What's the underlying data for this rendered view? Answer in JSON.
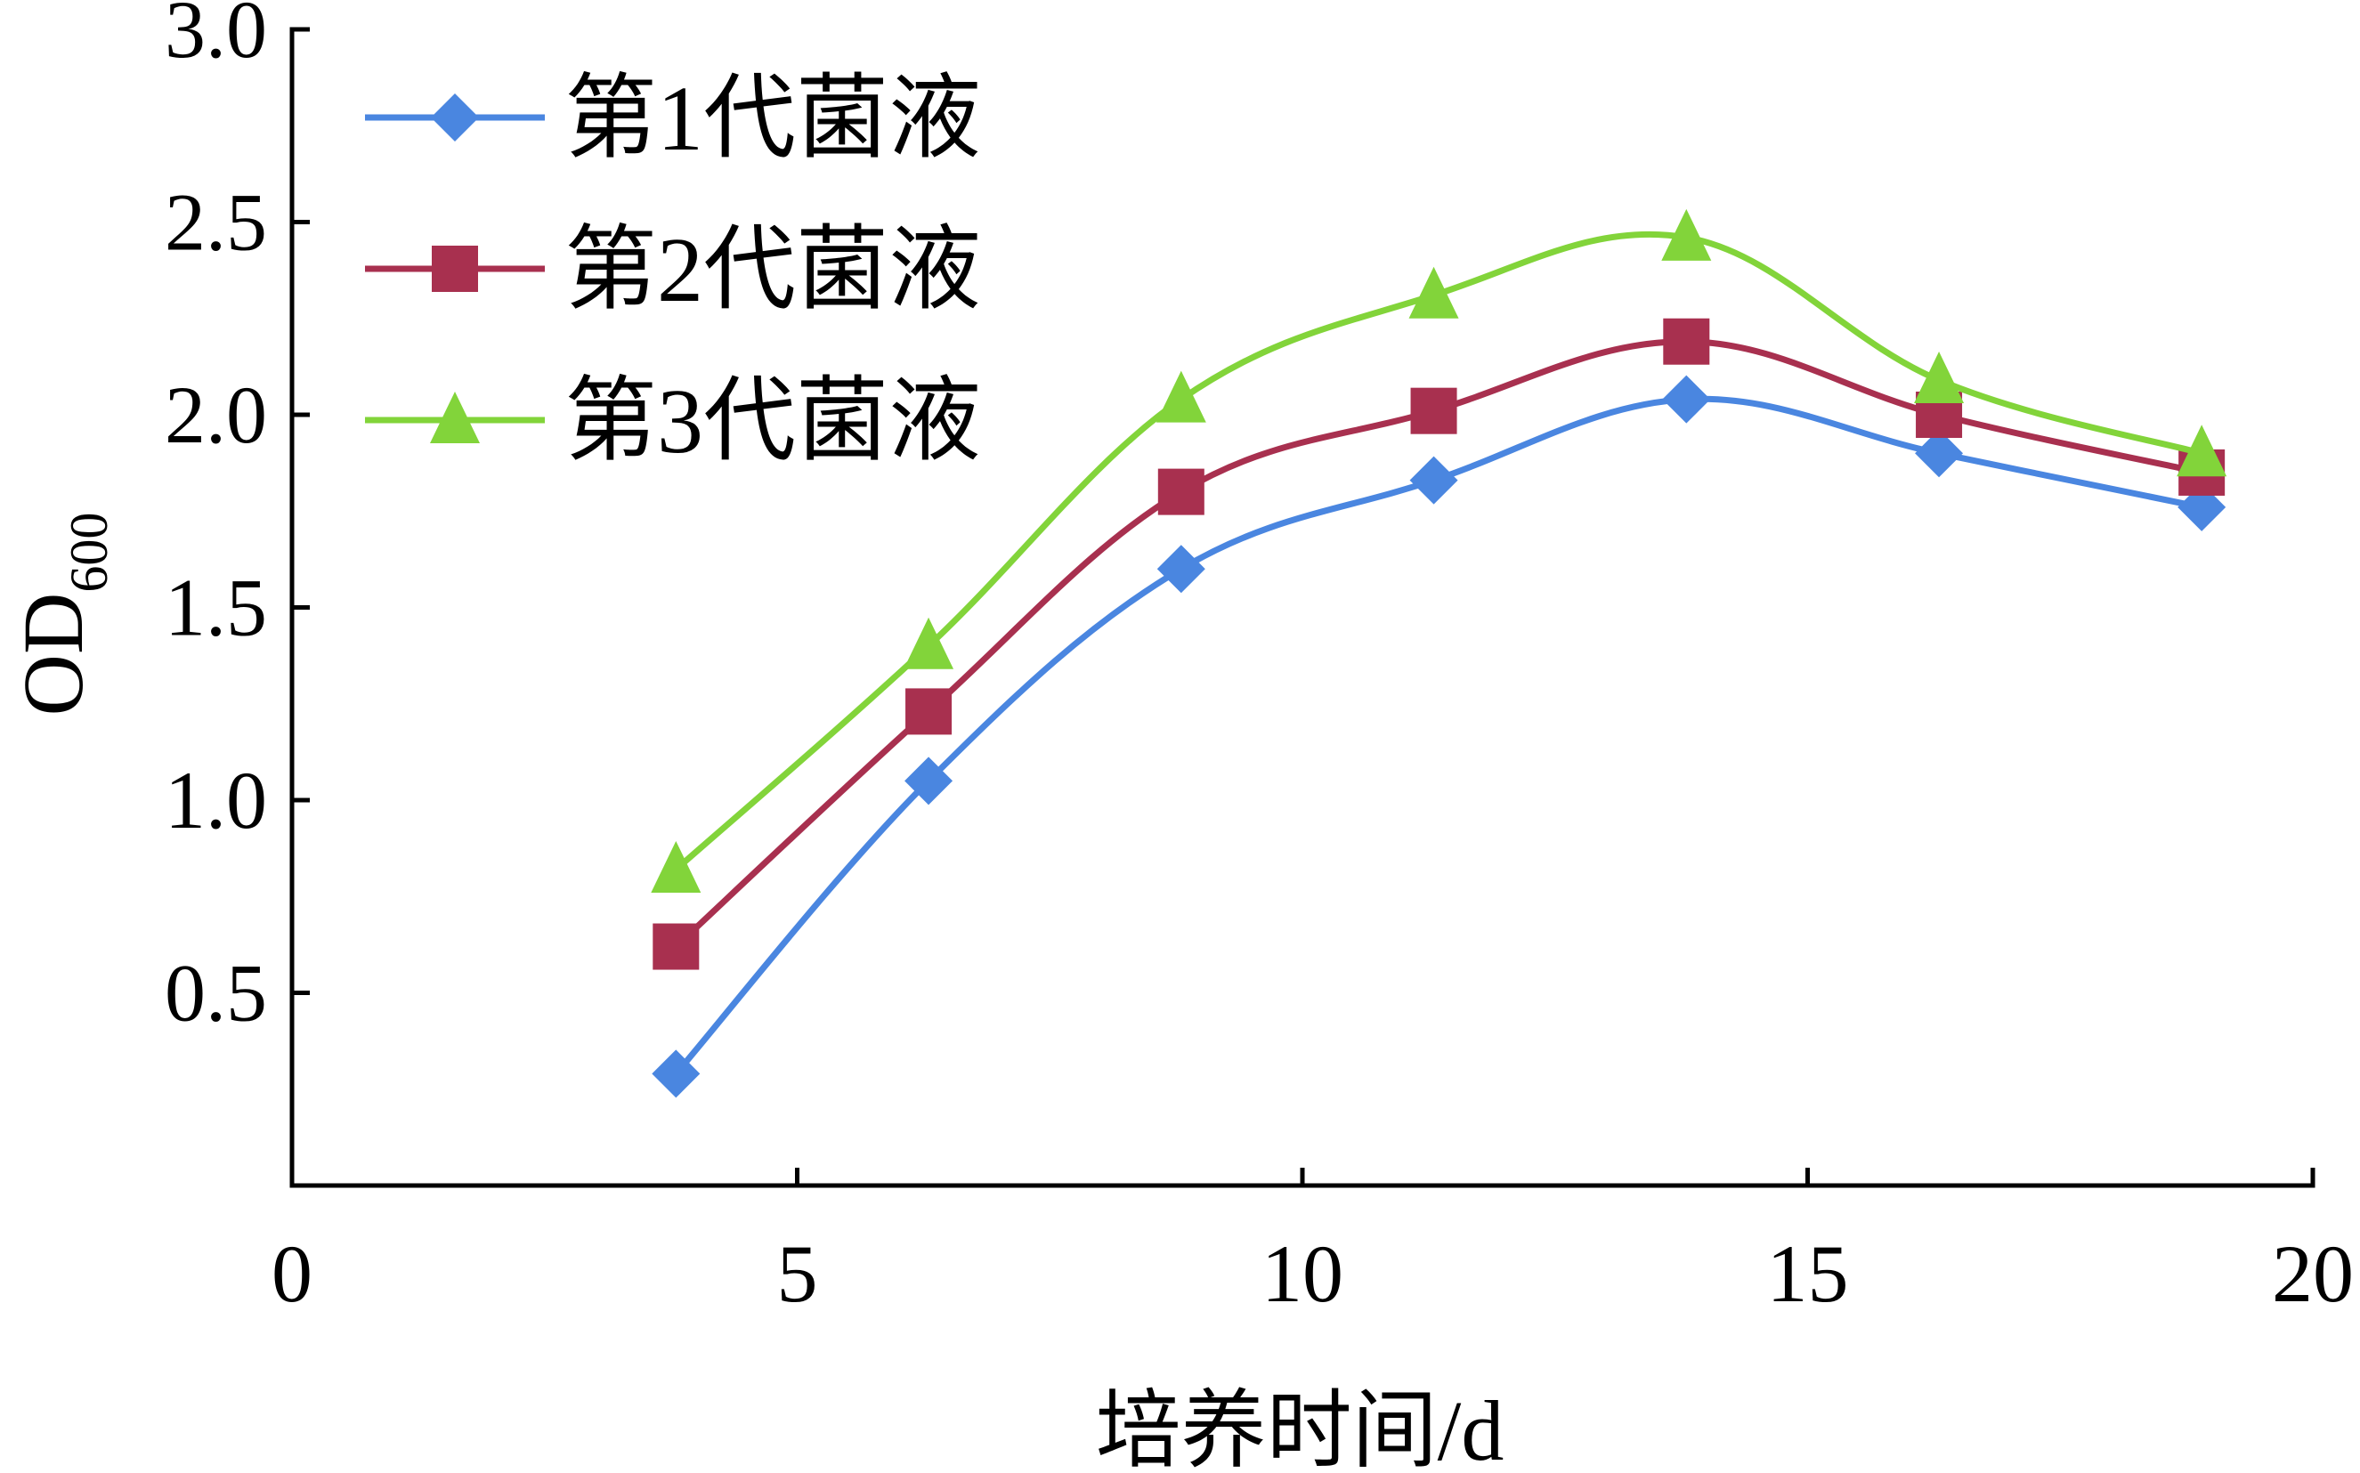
{
  "chart_data": {
    "type": "line",
    "xlabel": "培养时间/d",
    "ylabel": "OD",
    "ylabel_sub": "600",
    "xlim": [
      0,
      20
    ],
    "ylim": [
      0,
      3.0
    ],
    "x_ticks": [
      "0",
      "5",
      "10",
      "15",
      "20"
    ],
    "y_ticks": [
      "0.5",
      "1.0",
      "1.5",
      "2.0",
      "2.5",
      "3.0"
    ],
    "grid": false,
    "legend_position": "top-left",
    "x": [
      3.8,
      6.3,
      8.8,
      11.3,
      13.8,
      16.3,
      18.9
    ],
    "series": [
      {
        "name": "第1代菌液",
        "marker": "diamond",
        "color": "#4a86e0",
        "values": [
          0.29,
          1.05,
          1.6,
          1.83,
          2.04,
          1.9,
          1.76
        ]
      },
      {
        "name": "第2代菌液",
        "marker": "square",
        "color": "#a8304f",
        "values": [
          0.62,
          1.23,
          1.8,
          2.01,
          2.19,
          2.0,
          1.85
        ]
      },
      {
        "name": "第3代菌液",
        "marker": "triangle",
        "color": "#82d43a",
        "values": [
          0.82,
          1.4,
          2.04,
          2.31,
          2.46,
          2.09,
          1.9
        ]
      }
    ]
  }
}
